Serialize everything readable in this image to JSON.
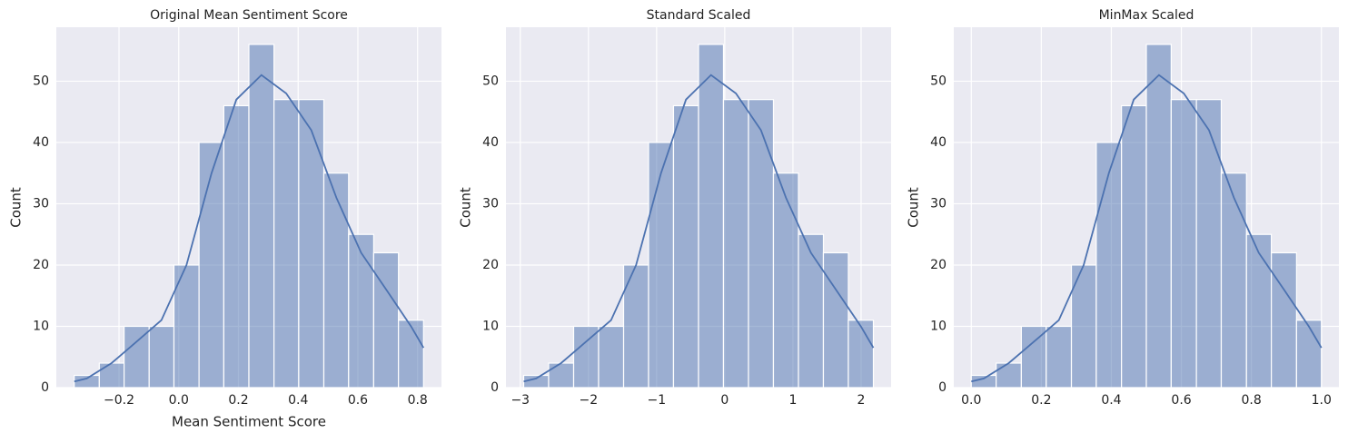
{
  "chart_data": [
    {
      "type": "histogram",
      "title": "Original Mean Sentiment Score",
      "xlabel": "Mean Sentiment Score",
      "ylabel": "Count",
      "bins": [
        -0.35,
        -0.266,
        -0.183,
        -0.099,
        -0.016,
        0.068,
        0.151,
        0.235,
        0.319,
        0.402,
        0.486,
        0.569,
        0.653,
        0.736,
        0.82
      ],
      "values": [
        2,
        4,
        10,
        10,
        20,
        40,
        46,
        56,
        47,
        47,
        35,
        25,
        22,
        11
      ],
      "kde": {
        "x": [
          -0.35,
          -0.308,
          -0.225,
          -0.141,
          -0.058,
          0.026,
          0.11,
          0.193,
          0.277,
          0.36,
          0.444,
          0.528,
          0.611,
          0.695,
          0.778,
          0.82
        ],
        "y": [
          1,
          1.5,
          4,
          7.5,
          11,
          20,
          35,
          47,
          51,
          48,
          42,
          31,
          22,
          16,
          10,
          6.5
        ]
      },
      "color": "#4c72b0",
      "xlim": [
        -0.41,
        0.88
      ],
      "ylim": [
        0,
        58.8
      ],
      "xticks": [
        {
          "value": -0.2,
          "label": "−0.2"
        },
        {
          "value": 0,
          "label": "0.0"
        },
        0.2,
        0.4,
        0.6,
        0.8
      ],
      "yticks": [
        0,
        10,
        20,
        30,
        40,
        50
      ],
      "grid": true
    },
    {
      "type": "histogram",
      "title": "Standard Scaled",
      "ylabel": "Count",
      "bins": [
        -2.95,
        -2.584,
        -2.217,
        -1.851,
        -1.484,
        -1.118,
        -0.752,
        -0.385,
        -0.019,
        0.348,
        0.714,
        1.081,
        1.447,
        1.813,
        2.18
      ],
      "values": [
        2,
        4,
        10,
        10,
        20,
        40,
        46,
        56,
        47,
        47,
        35,
        25,
        22,
        11
      ],
      "kde": {
        "x": [
          -2.95,
          -2.767,
          -2.401,
          -2.034,
          -1.668,
          -1.301,
          -0.935,
          -0.569,
          -0.202,
          0.164,
          0.531,
          0.897,
          1.264,
          1.63,
          1.996,
          2.18
        ],
        "y": [
          1,
          1.5,
          4,
          7.5,
          11,
          20,
          35,
          47,
          51,
          48,
          42,
          31,
          22,
          16,
          10,
          6.5
        ]
      },
      "color": "#4c72b0",
      "xlim": [
        -3.21,
        2.44
      ],
      "ylim": [
        0,
        58.8
      ],
      "xticks": [
        {
          "value": -3,
          "label": "−3"
        },
        {
          "value": -2,
          "label": "−2"
        },
        {
          "value": -1,
          "label": "−1"
        },
        0,
        1,
        2
      ],
      "yticks": [
        0,
        10,
        20,
        30,
        40,
        50
      ],
      "grid": true
    },
    {
      "type": "histogram",
      "title": "MinMax Scaled",
      "ylabel": "Count",
      "bins": [
        0,
        0.071,
        0.143,
        0.214,
        0.286,
        0.357,
        0.429,
        0.5,
        0.571,
        0.643,
        0.714,
        0.786,
        0.857,
        0.929,
        1
      ],
      "values": [
        2,
        4,
        10,
        10,
        20,
        40,
        46,
        56,
        47,
        47,
        35,
        25,
        22,
        11
      ],
      "kde": {
        "x": [
          0,
          0.036,
          0.107,
          0.179,
          0.25,
          0.321,
          0.393,
          0.464,
          0.536,
          0.607,
          0.679,
          0.75,
          0.821,
          0.893,
          0.964,
          1
        ],
        "y": [
          1,
          1.5,
          4,
          7.5,
          11,
          20,
          35,
          47,
          51,
          48,
          42,
          31,
          22,
          16,
          10,
          6.5
        ]
      },
      "color": "#4c72b0",
      "xlim": [
        -0.05,
        1.05
      ],
      "ylim": [
        0,
        58.8
      ],
      "xticks": [
        {
          "value": 0,
          "label": "0.0"
        },
        0.2,
        0.4,
        0.6,
        0.8,
        {
          "value": 1,
          "label": "1.0"
        }
      ],
      "yticks": [
        0,
        10,
        20,
        30,
        40,
        50
      ],
      "grid": true
    }
  ]
}
